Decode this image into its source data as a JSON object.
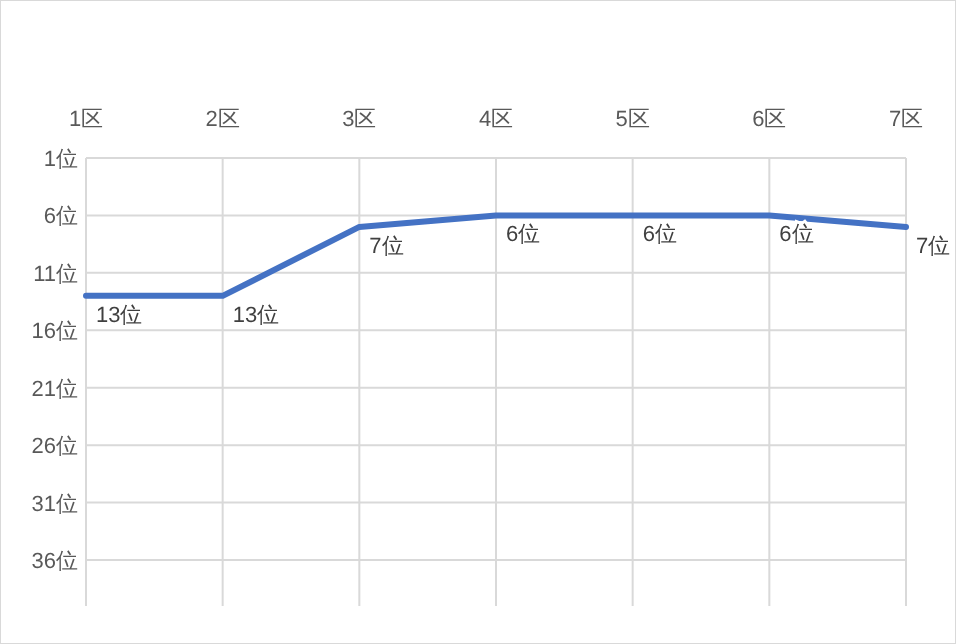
{
  "chart_data": {
    "type": "line",
    "categories": [
      "1区",
      "2区",
      "3区",
      "4区",
      "5区",
      "6区",
      "7区"
    ],
    "series": [
      {
        "color": "#4472c4",
        "values": [
          13,
          13,
          7,
          6,
          6,
          6,
          7
        ],
        "value_labels": [
          "13位",
          "13位",
          "7位",
          "6位",
          "6位",
          "6位",
          "7位"
        ]
      }
    ],
    "ylim": [
      40,
      1
    ],
    "yticks": [
      {
        "value": 1,
        "label": "1位"
      },
      {
        "value": 6,
        "label": "6位"
      },
      {
        "value": 11,
        "label": "11位"
      },
      {
        "value": 16,
        "label": "16位"
      },
      {
        "value": 21,
        "label": "21位"
      },
      {
        "value": 26,
        "label": "26位"
      },
      {
        "value": 31,
        "label": "31位"
      },
      {
        "value": 36,
        "label": "36位"
      }
    ],
    "grid": true,
    "marker": "none",
    "line_style": "solid"
  }
}
